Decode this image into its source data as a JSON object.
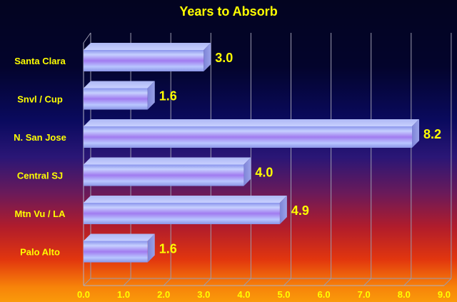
{
  "chart_data": {
    "type": "bar",
    "orientation": "horizontal",
    "title": "Years to Absorb",
    "xlabel": "",
    "ylabel": "",
    "categories": [
      "Santa Clara",
      "Snvl / Cup",
      "N. San Jose",
      "Central SJ",
      "Mtn Vu / LA",
      "Palo Alto"
    ],
    "values": [
      3.0,
      1.6,
      8.2,
      4.0,
      4.9,
      1.6
    ],
    "value_labels": [
      "3.0",
      "1.6",
      "8.2",
      "4.0",
      "4.9",
      "1.6"
    ],
    "xlim": [
      0,
      9
    ],
    "ticks": [
      "0.0",
      "1.0",
      "2.0",
      "3.0",
      "4.0",
      "5.0",
      "6.0",
      "7.0",
      "8.0",
      "9.0"
    ],
    "grid": true,
    "legend": "none",
    "bar_color": "#9a9cf0",
    "text_color": "#ffff00"
  }
}
